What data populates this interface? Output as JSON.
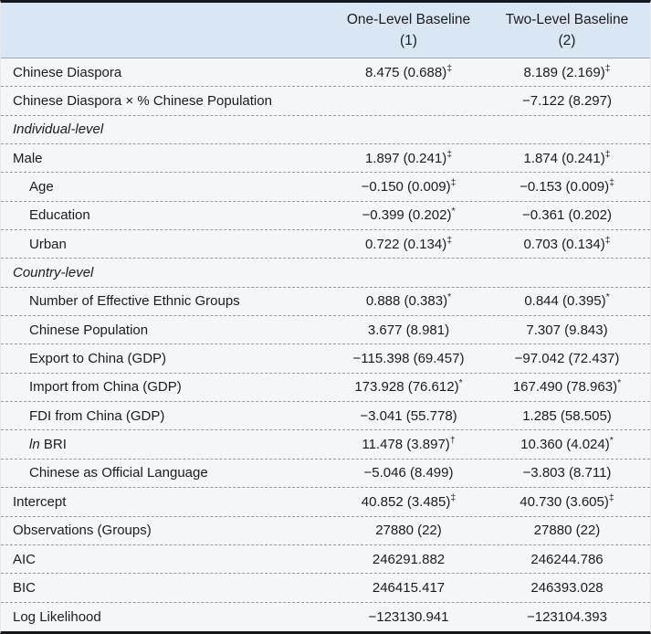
{
  "colors": {
    "header-bg": "#d9e6f4",
    "row-bg": "#f4f6f9",
    "border-dark": "#15181c",
    "rule-under-header": "#a0abb6",
    "dash": "#9a9a9a",
    "text": "#1c1c1c"
  },
  "table": {
    "header": {
      "col1_title": "One-Level Baseline",
      "col1_sub": "(1)",
      "col2_title": "Two-Level Baseline",
      "col2_sub": "(2)"
    },
    "rows": [
      {
        "label": "Chinese Diaspora",
        "c1": "8.475 (0.688)",
        "c1sup": "‡",
        "c2": "8.189 (2.169)",
        "c2sup": "‡"
      },
      {
        "label": "Chinese Diaspora × % Chinese Population",
        "c1": "",
        "c1sup": "",
        "c2": "−7.122 (8.297)",
        "c2sup": ""
      },
      {
        "label": "Individual-level",
        "section": true,
        "c1": "",
        "c1sup": "",
        "c2": "",
        "c2sup": ""
      },
      {
        "label": "Male",
        "c1": "1.897 (0.241)",
        "c1sup": "‡",
        "c2": "1.874 (0.241)",
        "c2sup": "‡"
      },
      {
        "label": "Age",
        "indent": true,
        "c1": "−0.150 (0.009)",
        "c1sup": "‡",
        "c2": "−0.153 (0.009)",
        "c2sup": "‡"
      },
      {
        "label": "Education",
        "indent": true,
        "c1": "−0.399 (0.202)",
        "c1sup": "*",
        "c2": "−0.361 (0.202)",
        "c2sup": ""
      },
      {
        "label": "Urban",
        "indent": true,
        "c1": "0.722 (0.134)",
        "c1sup": "‡",
        "c2": "0.703 (0.134)",
        "c2sup": "‡"
      },
      {
        "label": "Country-level",
        "section": true,
        "c1": "",
        "c1sup": "",
        "c2": "",
        "c2sup": ""
      },
      {
        "label": "Number of Effective Ethnic Groups",
        "indent": true,
        "c1": "0.888 (0.383)",
        "c1sup": "*",
        "c2": "0.844 (0.395)",
        "c2sup": "*"
      },
      {
        "label": "Chinese Population",
        "indent": true,
        "c1": "3.677 (8.981)",
        "c1sup": "",
        "c2": "7.307 (9.843)",
        "c2sup": ""
      },
      {
        "label": "Export to China (GDP)",
        "indent": true,
        "c1": "−115.398 (69.457)",
        "c1sup": "",
        "c2": "−97.042 (72.437)",
        "c2sup": ""
      },
      {
        "label": "Import from China (GDP)",
        "indent": true,
        "c1": "173.928 (76.612)",
        "c1sup": "*",
        "c2": "167.490 (78.963)",
        "c2sup": "*"
      },
      {
        "label": "FDI from China (GDP)",
        "indent": true,
        "c1": "−3.041 (55.778)",
        "c1sup": "",
        "c2": "1.285 (58.505)",
        "c2sup": ""
      },
      {
        "label_italic": "ln",
        "label": " BRI",
        "indent": true,
        "c1": "11.478 (3.897)",
        "c1sup": "†",
        "c2": "10.360 (4.024)",
        "c2sup": "*"
      },
      {
        "label": "Chinese as Official Language",
        "indent": true,
        "c1": "−5.046 (8.499)",
        "c1sup": "",
        "c2": "−3.803 (8.711)",
        "c2sup": ""
      },
      {
        "label": "Intercept",
        "c1": "40.852 (3.485)",
        "c1sup": "‡",
        "c2": "40.730 (3.605)",
        "c2sup": "‡"
      },
      {
        "label": "Observations (Groups)",
        "c1": "27880 (22)",
        "c1sup": "",
        "c2": "27880 (22)",
        "c2sup": ""
      },
      {
        "label": "AIC",
        "c1": "246291.882",
        "c1sup": "",
        "c2": "246244.786",
        "c2sup": ""
      },
      {
        "label": "BIC",
        "c1": "246415.417",
        "c1sup": "",
        "c2": "246393.028",
        "c2sup": ""
      },
      {
        "label": "Log Likelihood",
        "c1": "−123130.941",
        "c1sup": "",
        "c2": "−123104.393",
        "c2sup": ""
      }
    ]
  }
}
